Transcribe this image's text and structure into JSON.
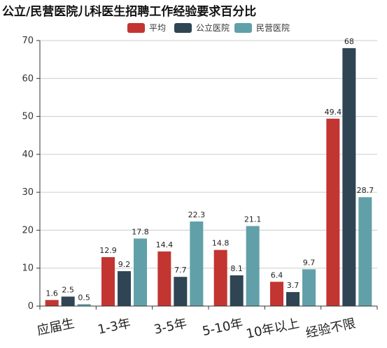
{
  "title": "公立/民营医院儿科医生招聘工作经验要求百分比",
  "chart_data": {
    "type": "bar",
    "categories": [
      "应届生",
      "1-3年",
      "3-5年",
      "5-10年",
      "10年以上",
      "经验不限"
    ],
    "series": [
      {
        "name": "平均",
        "color": "#c23531",
        "values": [
          1.6,
          12.9,
          14.4,
          14.8,
          6.4,
          49.4
        ]
      },
      {
        "name": "公立医院",
        "color": "#2f4554",
        "values": [
          2.5,
          9.2,
          7.7,
          8.1,
          3.7,
          68
        ]
      },
      {
        "name": "民营医院",
        "color": "#61a0a8",
        "values": [
          0.5,
          17.8,
          22.3,
          21.1,
          9.7,
          28.7
        ]
      }
    ],
    "ylim": [
      0,
      70
    ],
    "yticks": [
      "0",
      "10",
      "20",
      "30",
      "40",
      "50",
      "60",
      "70"
    ],
    "grid": true,
    "legend_position": "top-center",
    "xlabel": "",
    "ylabel": ""
  }
}
